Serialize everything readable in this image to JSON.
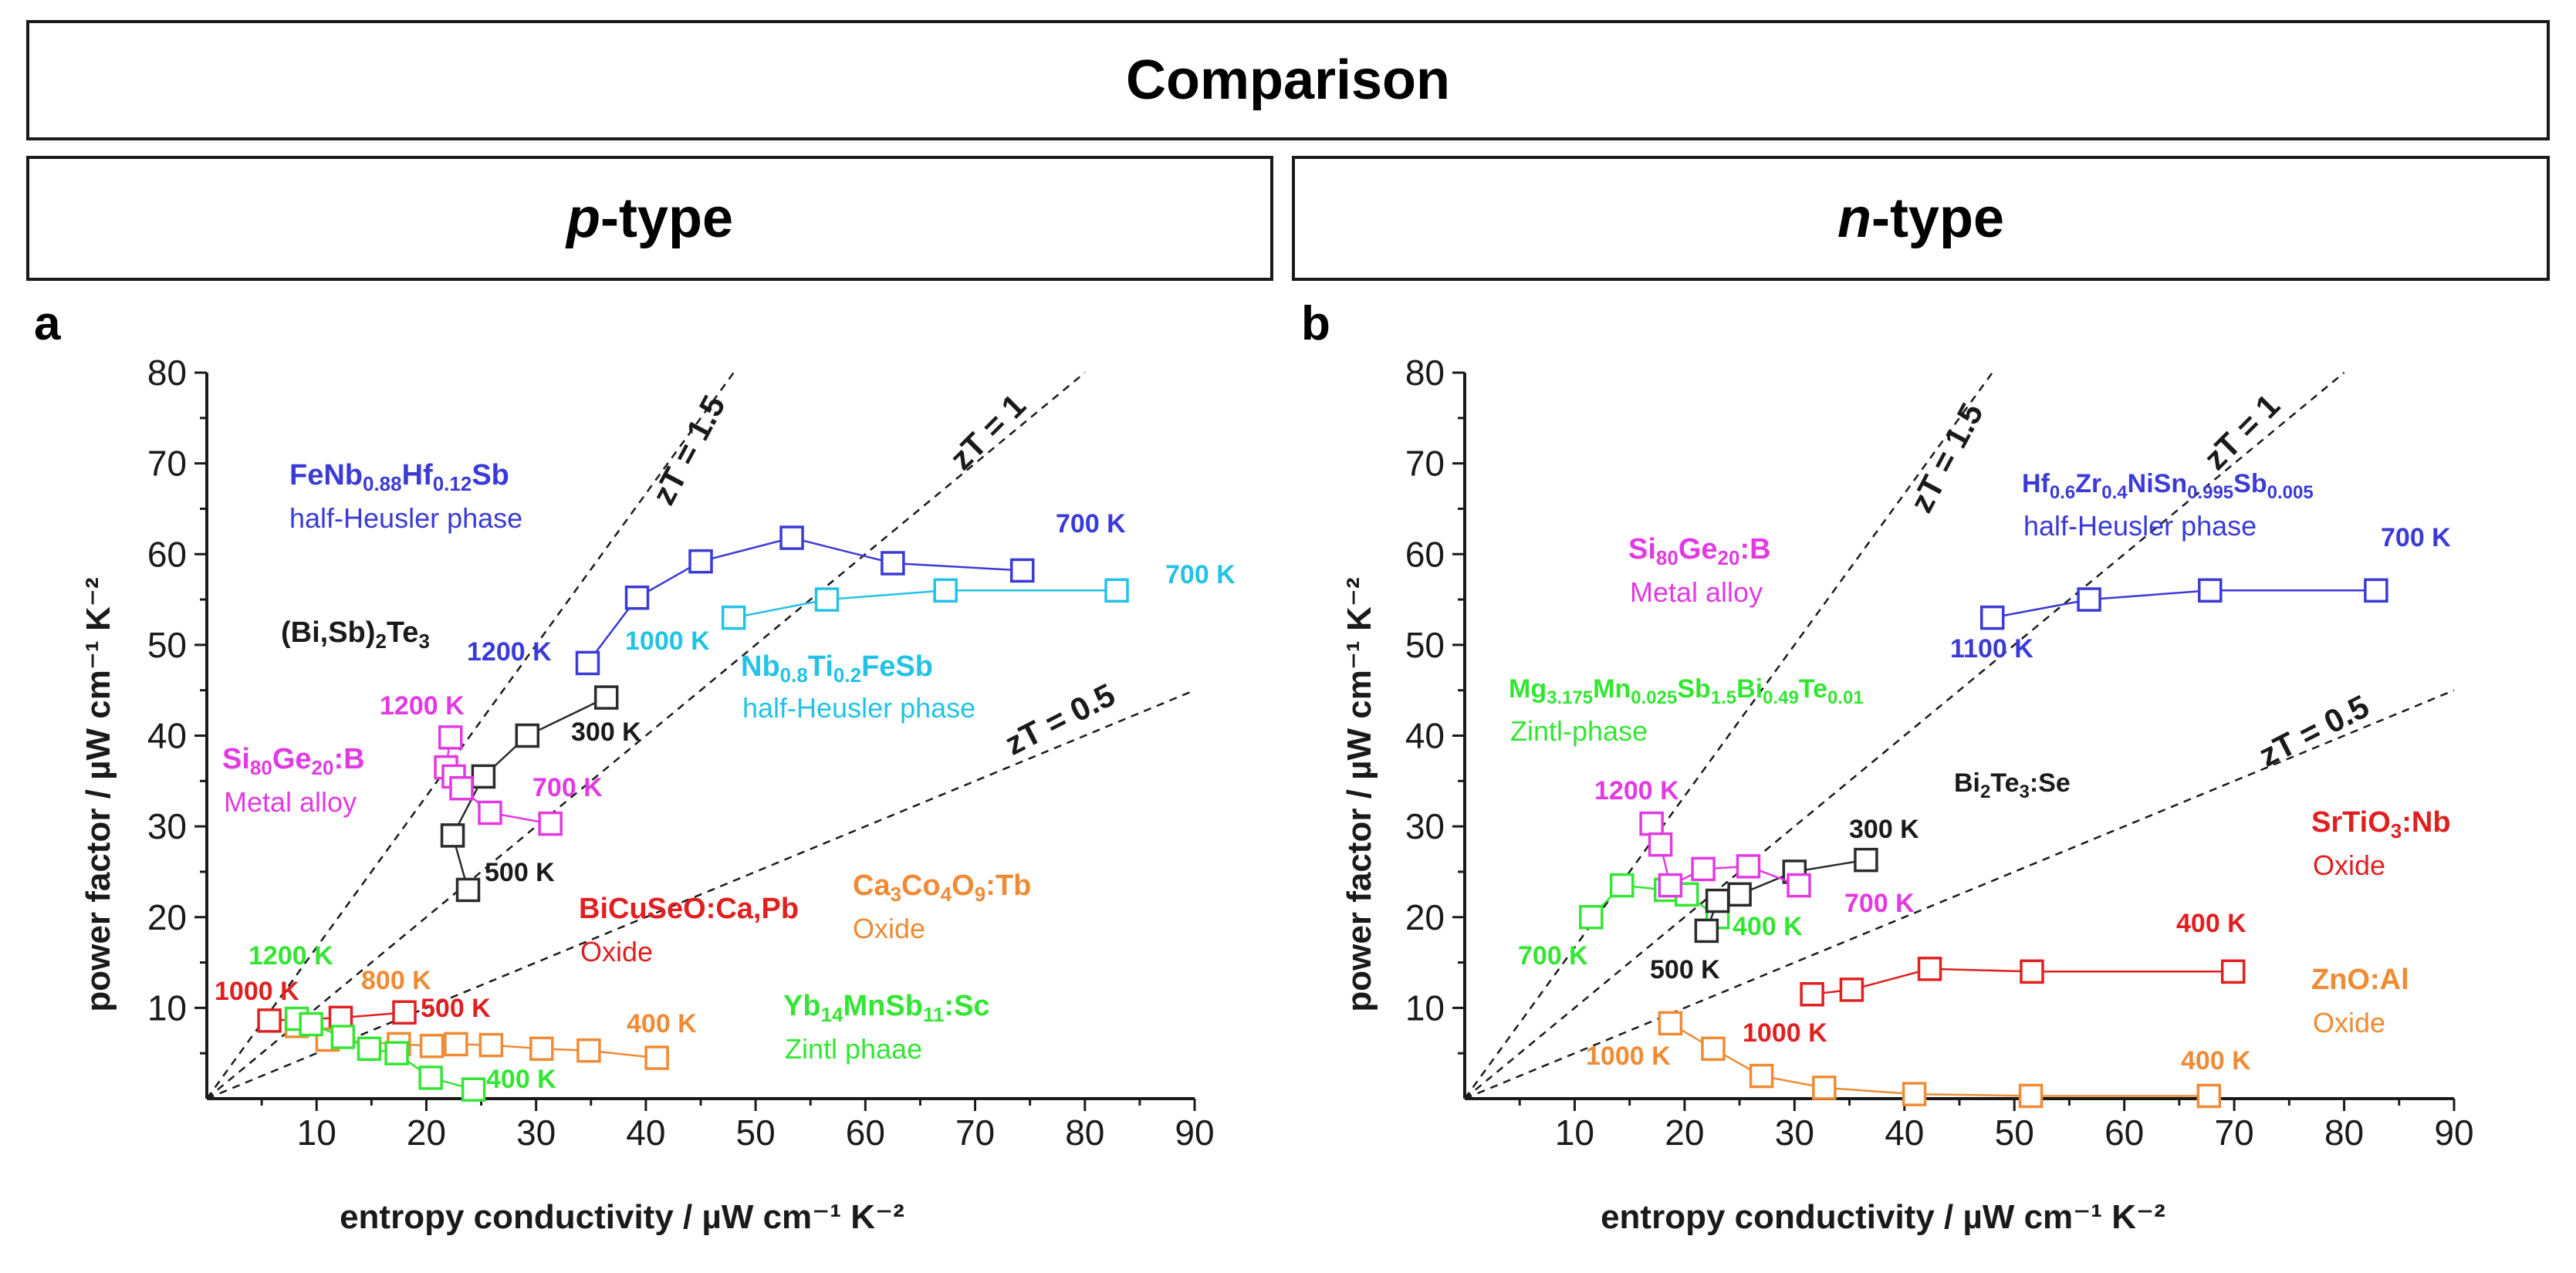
{
  "header": {
    "title": "Comparison",
    "p_label_italic": "p",
    "p_label_rest": "-type",
    "n_label_italic": "n",
    "n_label_rest": "-type"
  },
  "chart_data": [
    {
      "type": "scatter",
      "panel": "a",
      "title": "p-type",
      "xlabel": "entropy conductivity / µW cm⁻¹ K⁻²",
      "ylabel": "power factor / µW cm⁻¹ K⁻²",
      "xlim": [
        0,
        90
      ],
      "ylim": [
        0,
        80
      ],
      "xticks": [
        10,
        20,
        30,
        40,
        50,
        60,
        70,
        80,
        90
      ],
      "yticks": [
        10,
        20,
        30,
        40,
        50,
        60,
        70,
        80
      ],
      "zT_lines": [
        {
          "label": "zT = 1.5",
          "slope": 1.6667,
          "x_end": 53.5
        },
        {
          "label": "zT = 1",
          "slope": 1.0,
          "x_end": 80
        },
        {
          "label": "zT = 0.5",
          "slope": 0.5,
          "x_end": 90
        }
      ],
      "series": [
        {
          "name": "FeNb0.88Hf0.12Sb",
          "category": "half-Heusler phase",
          "color": "#3a3ad6",
          "points": [
            [
              34.7,
              48
            ],
            [
              39.2,
              55.2
            ],
            [
              45,
              59.2
            ],
            [
              53.3,
              61.8
            ],
            [
              62.5,
              59
            ],
            [
              74.3,
              58.2
            ]
          ]
        },
        {
          "name": "Nb0.8Ti0.2FeSb",
          "category": "half-Heusler phase",
          "color": "#22c3e6",
          "points": [
            [
              48,
              53
            ],
            [
              56.5,
              55
            ],
            [
              67.3,
              56
            ],
            [
              82.9,
              56
            ]
          ]
        },
        {
          "name": "(Bi,Sb)2Te3",
          "category": "",
          "color": "#2b2b2b",
          "points": [
            [
              23.8,
              23
            ],
            [
              22.4,
              29
            ],
            [
              25.2,
              35.5
            ],
            [
              29.2,
              40
            ],
            [
              36.4,
              44.2
            ]
          ]
        },
        {
          "name": "Si80Ge20:B",
          "category": "Metal alloy",
          "color": "#e23ae2",
          "points": [
            [
              22.2,
              39.8
            ],
            [
              21.8,
              36.5
            ],
            [
              22.5,
              35.5
            ],
            [
              23.2,
              34.2
            ],
            [
              25.8,
              31.5
            ],
            [
              31.3,
              30.3
            ]
          ]
        },
        {
          "name": "BiCuSeO:Ca,Pb",
          "category": "Oxide",
          "color": "#e02020",
          "points": [
            [
              5.7,
              8.6
            ],
            [
              12.2,
              8.9
            ],
            [
              18,
              9.5
            ]
          ]
        },
        {
          "name": "Ca3Co4O9:Tb",
          "category": "Oxide",
          "color": "#ef8b34",
          "points": [
            [
              8.2,
              8
            ],
            [
              11,
              6.5
            ],
            [
              17.5,
              6
            ],
            [
              20.5,
              5.8
            ],
            [
              22.7,
              6
            ],
            [
              25.9,
              5.9
            ],
            [
              30.5,
              5.5
            ],
            [
              34.8,
              5.3
            ],
            [
              41,
              4.5
            ]
          ]
        },
        {
          "name": "Yb14MnSb11:Sc",
          "category": "Zintl phaae",
          "color": "#33e633",
          "points": [
            [
              8.2,
              8.8
            ],
            [
              9.5,
              8.2
            ],
            [
              12.4,
              6.8
            ],
            [
              14.8,
              5.5
            ],
            [
              17.3,
              5
            ],
            [
              20.4,
              2.3
            ],
            [
              24.3,
              1
            ]
          ]
        }
      ],
      "labels": {
        "fenb_name": "FeNb",
        "fenb_sub1": "0.88",
        "fenb_mid": "Hf",
        "fenb_sub2": "0.12",
        "fenb_end": "Sb",
        "fenb_cat": "half-Heusler phase",
        "nbti_name": "Nb",
        "nbti_sub1": "0.8",
        "nbti_mid": "Ti",
        "nbti_sub2": "0.2",
        "nbti_end": "FeSb",
        "nbti_cat": "half-Heusler phase",
        "bisb_a": "(Bi,Sb)",
        "bisb_sub": "2",
        "bisb_b": "Te",
        "bisb_sub2": "3",
        "sige_a": "Si",
        "sige_sub1": "80",
        "sige_b": "Ge",
        "sige_sub2": "20",
        "sige_c": ":B",
        "sige_cat": "Metal alloy",
        "bicu": "BiCuSeO:Ca,Pb",
        "bicu_cat": "Oxide",
        "caco_a": "Ca",
        "caco_sub1": "3",
        "caco_b": "Co",
        "caco_sub2": "4",
        "caco_c": "O",
        "caco_sub3": "9",
        "caco_d": ":Tb",
        "caco_cat": "Oxide",
        "yb_a": "Yb",
        "yb_sub1": "14",
        "yb_b": "MnSb",
        "yb_sub2": "11",
        "yb_c": ":Sc",
        "yb_cat": "Zintl phaae",
        "t_700_fenb": "700 K",
        "t_1200_fenb": "1200 K",
        "t_700_nbti": "700 K",
        "t_1000_nbti": "1000 K",
        "t_300_bisb": "300 K",
        "t_500_bisb": "500 K",
        "t_1200_sige": "1200 K",
        "t_700_sige": "700 K",
        "t_1000_bicu": "1000 K",
        "t_500_bicu": "500 K",
        "t_800_caco": "800 K",
        "t_400_caco": "400 K",
        "t_1200_yb": "1200 K",
        "t_400_yb": "400 K"
      }
    },
    {
      "type": "scatter",
      "panel": "b",
      "title": "n-type",
      "xlabel": "entropy conductivity / µW cm⁻¹ K⁻²",
      "ylabel": "power factor / µW cm⁻¹ K⁻²",
      "xlim": [
        0,
        90
      ],
      "ylim": [
        0,
        80
      ],
      "xticks": [
        10,
        20,
        30,
        40,
        50,
        60,
        70,
        80,
        90
      ],
      "yticks": [
        10,
        20,
        30,
        40,
        50,
        60,
        70,
        80
      ],
      "zT_lines": [
        {
          "label": "zT = 1.5",
          "slope": 1.6667,
          "x_end": 53.5
        },
        {
          "label": "zT = 1",
          "slope": 1.0,
          "x_end": 80
        },
        {
          "label": "zT = 0.5",
          "slope": 0.5,
          "x_end": 90
        }
      ],
      "series": [
        {
          "name": "Hf0.6Zr0.4NiSn0.995Sb0.005",
          "category": "half-Heusler phase",
          "color": "#3a3ad6",
          "points": [
            [
              48,
              53
            ],
            [
              56.8,
              55
            ],
            [
              67.8,
              56
            ],
            [
              82.9,
              56
            ]
          ]
        },
        {
          "name": "Mg3.175Mn0.025Sb1.5Bi0.49Te0.01",
          "category": "Zintl-phase",
          "color": "#33e633",
          "points": [
            [
              11.5,
              20
            ],
            [
              14.3,
              23.5
            ],
            [
              18.3,
              23
            ],
            [
              20.2,
              22.5
            ],
            [
              23,
              20
            ]
          ]
        },
        {
          "name": "Bi2Te3:Se",
          "category": "",
          "color": "#2b2b2b",
          "points": [
            [
              22,
              18.5
            ],
            [
              23,
              21.8
            ],
            [
              25,
              22.5
            ],
            [
              30,
              25
            ],
            [
              36.5,
              26.3
            ]
          ]
        },
        {
          "name": "Si80Ge20:B",
          "category": "Metal alloy",
          "color": "#e23ae2",
          "points": [
            [
              17,
              30.3
            ],
            [
              17.8,
              28
            ],
            [
              18.7,
              23.5
            ],
            [
              21.7,
              25.3
            ],
            [
              25.8,
              25.6
            ],
            [
              30.4,
              23.5
            ]
          ]
        },
        {
          "name": "SrTiO3:Nb",
          "category": "Oxide",
          "color": "#e02020",
          "points": [
            [
              31.6,
              11.5
            ],
            [
              35.2,
              12
            ],
            [
              42.3,
              14.3
            ],
            [
              51.6,
              14
            ],
            [
              69.9,
              14
            ]
          ]
        },
        {
          "name": "ZnO:Al",
          "category": "Oxide",
          "color": "#ef8b34",
          "points": [
            [
              18.7,
              8.3
            ],
            [
              22.6,
              5.5
            ],
            [
              27,
              2.5
            ],
            [
              32.7,
              1.2
            ],
            [
              40.9,
              0.5
            ],
            [
              51.5,
              0.3
            ],
            [
              67.7,
              0.3
            ]
          ]
        }
      ],
      "labels": {
        "hf_a": "Hf",
        "hf_s1": "0.6",
        "hf_b": "Zr",
        "hf_s2": "0.4",
        "hf_c": "NiSn",
        "hf_s3": "0.995",
        "hf_d": "Sb",
        "hf_s4": "0.005",
        "hf_cat": "half-Heusler phase",
        "sige_a": "Si",
        "sige_sub1": "80",
        "sige_b": "Ge",
        "sige_sub2": "20",
        "sige_c": ":B",
        "sige_cat": "Metal alloy",
        "mg_a": "Mg",
        "mg_s1": "3.175",
        "mg_b": "Mn",
        "mg_s2": "0.025",
        "mg_c": "Sb",
        "mg_s3": "1.5",
        "mg_d": "Bi",
        "mg_s4": "0.49",
        "mg_e": "Te",
        "mg_s5": "0.01",
        "mg_cat": "Zintl-phase",
        "bite_a": "Bi",
        "bite_s1": "2",
        "bite_b": "Te",
        "bite_s2": "3",
        "bite_c": ":Se",
        "sr_a": "SrTiO",
        "sr_s1": "3",
        "sr_b": ":Nb",
        "sr_cat": "Oxide",
        "zno": "ZnO:Al",
        "zno_cat": "Oxide",
        "t_700_hf": "700 K",
        "t_1100_hf": "1100 K",
        "t_1200_sige": "1200 K",
        "t_700_sige": "700 K",
        "t_300_bite": "300 K",
        "t_500_bite": "500 K",
        "t_700_mg": "700 K",
        "t_400_mg": "400 K",
        "t_400_sr": "400 K",
        "t_1000_sr": "1000 K",
        "t_1000_zno": "1000 K",
        "t_400_zno": "400 K"
      }
    }
  ]
}
